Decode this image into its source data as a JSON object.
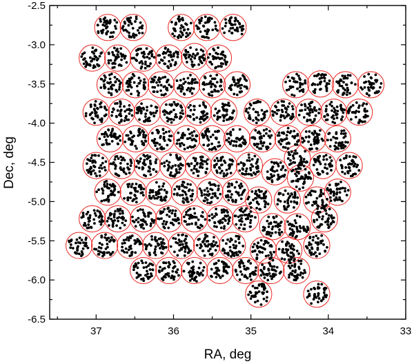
{
  "chart_data": {
    "type": "scatter",
    "title": "",
    "xlabel": "RA, deg",
    "ylabel": "Dec, deg",
    "xlim": [
      37.6,
      33.0
    ],
    "ylim": [
      -6.5,
      -2.5
    ],
    "x_reversed": true,
    "xticks": [
      37,
      36,
      35,
      34,
      33
    ],
    "xtick_labels": [
      "37",
      "36",
      "35",
      "34",
      "33"
    ],
    "yticks": [
      -2.5,
      -3.0,
      -3.5,
      -4.0,
      -4.5,
      -5.0,
      -5.5,
      -6.0,
      -6.5
    ],
    "ytick_labels": [
      "-2.5",
      "-3.0",
      "-3.5",
      "-4.0",
      "-4.5",
      "-5.0",
      "-5.5",
      "-6.0",
      "-6.5"
    ],
    "grid": false,
    "fields_radius_deg": 0.17,
    "fields_points_per_field": 38,
    "fields": [
      [
        36.85,
        -2.78
      ],
      [
        36.52,
        -2.78
      ],
      [
        35.9,
        -2.78
      ],
      [
        35.57,
        -2.78
      ],
      [
        35.23,
        -2.78
      ],
      [
        37.05,
        -3.17
      ],
      [
        36.72,
        -3.17
      ],
      [
        36.39,
        -3.17
      ],
      [
        36.06,
        -3.17
      ],
      [
        35.73,
        -3.15
      ],
      [
        35.42,
        -3.17
      ],
      [
        36.82,
        -3.51
      ],
      [
        36.49,
        -3.51
      ],
      [
        36.16,
        -3.51
      ],
      [
        35.83,
        -3.51
      ],
      [
        35.5,
        -3.51
      ],
      [
        35.18,
        -3.51
      ],
      [
        34.42,
        -3.51
      ],
      [
        34.1,
        -3.5
      ],
      [
        33.78,
        -3.51
      ],
      [
        33.45,
        -3.51
      ],
      [
        37.0,
        -3.86
      ],
      [
        36.67,
        -3.86
      ],
      [
        36.34,
        -3.86
      ],
      [
        36.01,
        -3.86
      ],
      [
        35.68,
        -3.86
      ],
      [
        35.35,
        -3.86
      ],
      [
        34.92,
        -3.86
      ],
      [
        34.58,
        -3.86
      ],
      [
        34.25,
        -3.86
      ],
      [
        33.93,
        -3.86
      ],
      [
        33.6,
        -3.86
      ],
      [
        36.82,
        -4.2
      ],
      [
        36.49,
        -4.2
      ],
      [
        36.16,
        -4.2
      ],
      [
        35.83,
        -4.2
      ],
      [
        35.5,
        -4.2
      ],
      [
        35.18,
        -4.2
      ],
      [
        34.85,
        -4.2
      ],
      [
        34.52,
        -4.2
      ],
      [
        34.2,
        -4.2
      ],
      [
        33.88,
        -4.2
      ],
      [
        37.0,
        -4.54
      ],
      [
        36.67,
        -4.54
      ],
      [
        36.34,
        -4.54
      ],
      [
        36.01,
        -4.54
      ],
      [
        35.68,
        -4.54
      ],
      [
        35.35,
        -4.54
      ],
      [
        35.02,
        -4.54
      ],
      [
        34.69,
        -4.62
      ],
      [
        34.4,
        -4.45
      ],
      [
        34.36,
        -4.7
      ],
      [
        34.07,
        -4.54
      ],
      [
        33.73,
        -4.54
      ],
      [
        36.85,
        -4.88
      ],
      [
        36.52,
        -4.88
      ],
      [
        36.19,
        -4.88
      ],
      [
        35.86,
        -4.88
      ],
      [
        35.53,
        -4.88
      ],
      [
        35.2,
        -4.88
      ],
      [
        34.9,
        -4.98
      ],
      [
        34.53,
        -4.98
      ],
      [
        34.15,
        -4.98
      ],
      [
        33.88,
        -4.88
      ],
      [
        37.05,
        -5.22
      ],
      [
        36.72,
        -5.22
      ],
      [
        36.39,
        -5.22
      ],
      [
        36.06,
        -5.22
      ],
      [
        35.73,
        -5.22
      ],
      [
        35.4,
        -5.22
      ],
      [
        35.07,
        -5.22
      ],
      [
        34.72,
        -5.32
      ],
      [
        34.4,
        -5.32
      ],
      [
        34.05,
        -5.22
      ],
      [
        37.22,
        -5.56
      ],
      [
        36.89,
        -5.56
      ],
      [
        36.56,
        -5.56
      ],
      [
        36.23,
        -5.56
      ],
      [
        35.9,
        -5.56
      ],
      [
        35.57,
        -5.56
      ],
      [
        35.24,
        -5.56
      ],
      [
        34.84,
        -5.62
      ],
      [
        34.51,
        -5.62
      ],
      [
        34.15,
        -5.56
      ],
      [
        36.39,
        -5.88
      ],
      [
        36.06,
        -5.88
      ],
      [
        35.73,
        -5.88
      ],
      [
        35.4,
        -5.88
      ],
      [
        35.07,
        -5.88
      ],
      [
        34.74,
        -5.88
      ],
      [
        34.41,
        -5.88
      ],
      [
        34.9,
        -6.18
      ],
      [
        34.15,
        -6.18
      ]
    ],
    "styles": {
      "background": "#ffffff",
      "point_color": "#000000",
      "circle_color": "#e8231f",
      "axis_color": "#000000"
    }
  }
}
